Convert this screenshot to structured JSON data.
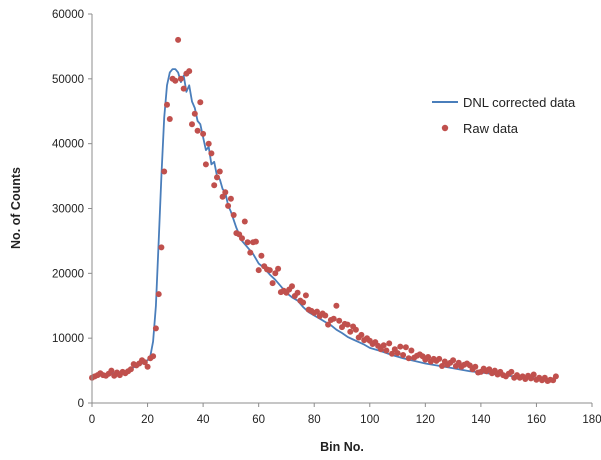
{
  "chart_data": {
    "type": "scatter",
    "xlabel": "Bin No.",
    "ylabel": "No. of Counts",
    "xlim": [
      0,
      180
    ],
    "ylim": [
      0,
      60000
    ],
    "x_ticks": [
      0,
      20,
      40,
      60,
      80,
      100,
      120,
      140,
      160,
      180
    ],
    "y_ticks": [
      0,
      10000,
      20000,
      30000,
      40000,
      50000,
      60000
    ],
    "x_tick_labels": [
      "0",
      "20",
      "40",
      "60",
      "80",
      "100",
      "120",
      "140",
      "160",
      "180"
    ],
    "y_tick_labels": [
      "0",
      "10000",
      "20000",
      "30000",
      "40000",
      "50000",
      "60000"
    ],
    "grid": false,
    "legend_position": "right",
    "series": [
      {
        "name": "DNL corrected data",
        "style": "line",
        "color": "#4a7ebb",
        "x": [
          0,
          2,
          4,
          6,
          8,
          10,
          12,
          14,
          16,
          18,
          20,
          21,
          22,
          23,
          24,
          25,
          26,
          27,
          28,
          29,
          30,
          31,
          32,
          33,
          34,
          35,
          36,
          37,
          38,
          39,
          40,
          41,
          42,
          43,
          44,
          45,
          46,
          47,
          48,
          49,
          50,
          52,
          54,
          56,
          58,
          60,
          62,
          64,
          66,
          68,
          70,
          72,
          74,
          76,
          78,
          80,
          82,
          84,
          86,
          88,
          90,
          92,
          94,
          96,
          98,
          100,
          104,
          108,
          112,
          116,
          120,
          124,
          128,
          132,
          136,
          140,
          144,
          148,
          152,
          156,
          160,
          164,
          167
        ],
        "y": [
          4000,
          4200,
          4400,
          4500,
          4600,
          4700,
          4900,
          5300,
          5700,
          6100,
          6600,
          7200,
          9500,
          15000,
          25000,
          35000,
          44000,
          49000,
          51000,
          51500,
          51500,
          51000,
          49500,
          50500,
          48000,
          49000,
          46500,
          45500,
          43500,
          43000,
          41000,
          39000,
          39500,
          36800,
          37200,
          35000,
          34500,
          33000,
          32500,
          30500,
          29500,
          27000,
          25000,
          24000,
          23000,
          21500,
          20800,
          19800,
          19000,
          18000,
          17000,
          16300,
          15800,
          14800,
          14000,
          13500,
          13000,
          12500,
          12000,
          11300,
          10800,
          10200,
          9800,
          9400,
          9000,
          8500,
          8000,
          7400,
          6900,
          6500,
          6100,
          5800,
          5500,
          5200,
          4900,
          4700,
          4500,
          4300,
          4100,
          3900,
          3800,
          3700,
          3700
        ]
      },
      {
        "name": "Raw data",
        "style": "markers",
        "color": "#c0504d",
        "x": [
          0,
          1,
          2,
          3,
          4,
          5,
          6,
          7,
          8,
          9,
          10,
          11,
          12,
          13,
          14,
          15,
          16,
          17,
          18,
          19,
          20,
          21,
          22,
          23,
          24,
          25,
          26,
          27,
          28,
          29,
          30,
          31,
          32,
          33,
          34,
          35,
          36,
          37,
          38,
          39,
          40,
          41,
          42,
          43,
          44,
          45,
          46,
          47,
          48,
          49,
          50,
          51,
          52,
          53,
          54,
          55,
          56,
          57,
          58,
          59,
          60,
          61,
          62,
          63,
          64,
          65,
          66,
          67,
          68,
          69,
          70,
          71,
          72,
          73,
          74,
          75,
          76,
          77,
          78,
          79,
          80,
          81,
          82,
          83,
          84,
          85,
          86,
          87,
          88,
          89,
          90,
          91,
          92,
          93,
          94,
          95,
          96,
          97,
          98,
          99,
          100,
          101,
          102,
          103,
          104,
          105,
          106,
          107,
          108,
          109,
          110,
          111,
          112,
          113,
          114,
          115,
          116,
          117,
          118,
          119,
          120,
          121,
          122,
          123,
          124,
          125,
          126,
          127,
          128,
          129,
          130,
          131,
          132,
          133,
          134,
          135,
          136,
          137,
          138,
          139,
          140,
          141,
          142,
          143,
          144,
          145,
          146,
          147,
          148,
          149,
          150,
          151,
          152,
          153,
          154,
          155,
          156,
          157,
          158,
          159,
          160,
          161,
          162,
          163,
          164,
          165,
          166,
          167
        ],
        "y": [
          3900,
          4100,
          4300,
          4600,
          4300,
          4200,
          4500,
          5000,
          4200,
          4700,
          4300,
          4800,
          4600,
          4900,
          5200,
          6000,
          5800,
          6100,
          6600,
          6300,
          5600,
          6900,
          7200,
          11500,
          16800,
          24000,
          35700,
          46000,
          43800,
          50000,
          49700,
          56000,
          50000,
          48500,
          50800,
          51200,
          43000,
          44600,
          42000,
          46400,
          41500,
          36800,
          40000,
          38500,
          33600,
          34800,
          35700,
          31800,
          32500,
          30400,
          31500,
          29000,
          26200,
          26000,
          25400,
          28000,
          24800,
          23200,
          24800,
          24900,
          20500,
          22700,
          21100,
          20600,
          20500,
          18500,
          20000,
          20700,
          17100,
          17300,
          17000,
          17500,
          18000,
          16500,
          17000,
          15800,
          15500,
          16600,
          14400,
          14200,
          13900,
          14100,
          13400,
          13800,
          13500,
          12100,
          12800,
          13000,
          15000,
          12700,
          11700,
          12200,
          12100,
          11000,
          11800,
          11300,
          10100,
          10500,
          9700,
          10000,
          9600,
          9100,
          9400,
          8800,
          8300,
          8900,
          8100,
          9200,
          7600,
          8300,
          7700,
          8700,
          7400,
          8600,
          6900,
          8100,
          7000,
          7300,
          7500,
          7200,
          6700,
          7100,
          6400,
          6800,
          6500,
          6800,
          5700,
          6400,
          5900,
          6200,
          6600,
          5700,
          6200,
          5600,
          5900,
          6100,
          5800,
          5200,
          5600,
          4700,
          4800,
          5300,
          4900,
          5200,
          4600,
          5000,
          4400,
          4800,
          4300,
          4100,
          4500,
          4800,
          3900,
          4300,
          3900,
          4100,
          3700,
          4200,
          3800,
          4400,
          3600,
          3900,
          3500,
          3900,
          3400,
          3600,
          3500,
          4100
        ]
      }
    ]
  }
}
